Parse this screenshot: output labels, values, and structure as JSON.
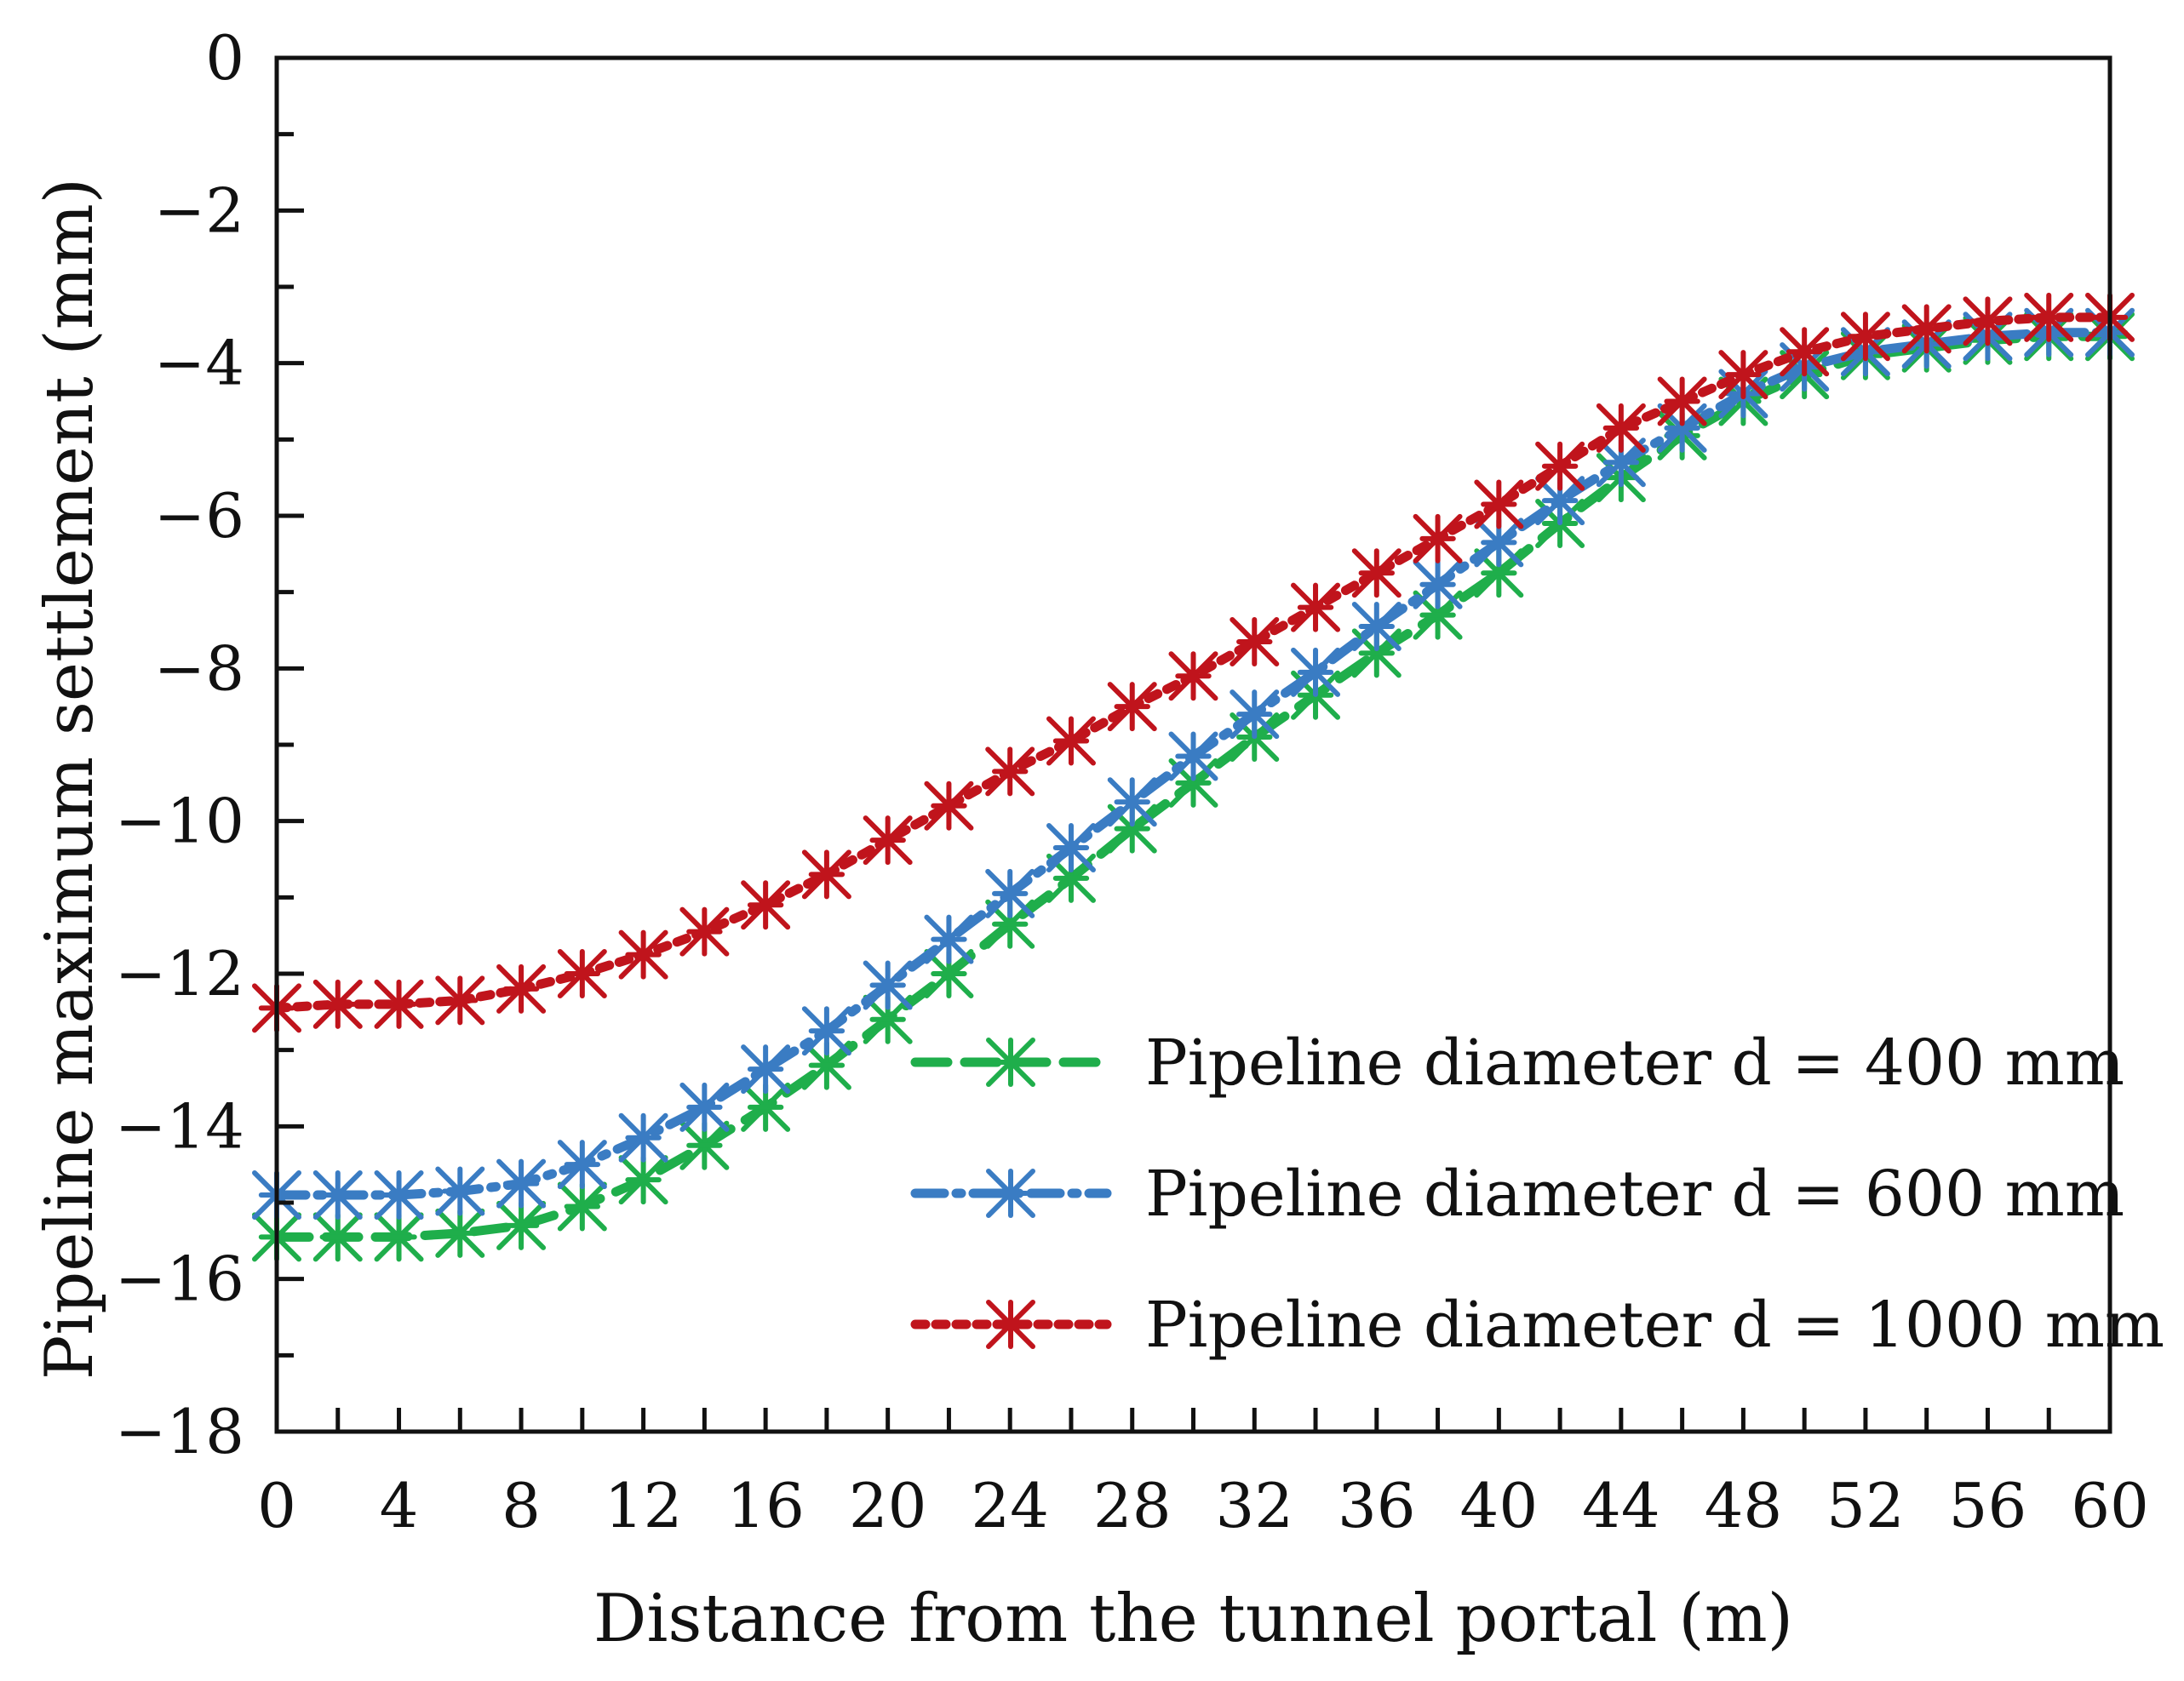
{
  "chart_data": {
    "type": "line",
    "title": "",
    "xlabel": "Distance from the tunnel portal (m)",
    "ylabel": "Pipeline maximum settlement (mm)",
    "xlim": [
      0,
      60
    ],
    "ylim": [
      -18,
      0
    ],
    "xticks": [
      0,
      4,
      8,
      12,
      16,
      20,
      24,
      28,
      32,
      36,
      40,
      44,
      48,
      52,
      56,
      60
    ],
    "yticks": [
      0,
      -2,
      -4,
      -6,
      -8,
      -10,
      -12,
      -14,
      -16,
      -18
    ],
    "xtick_labels": [
      "0",
      "4",
      "8",
      "12",
      "16",
      "20",
      "24",
      "28",
      "32",
      "36",
      "40",
      "44",
      "48",
      "52",
      "56",
      "60"
    ],
    "ytick_labels": [
      "0",
      "−2",
      "−4",
      "−6",
      "−8",
      "−10",
      "−12",
      "−14",
      "−16",
      "−18"
    ],
    "grid": false,
    "legend_position": "lower-right",
    "x": [
      0,
      2,
      4,
      6,
      8,
      10,
      12,
      14,
      16,
      18,
      20,
      22,
      24,
      26,
      28,
      30,
      32,
      34,
      36,
      38,
      40,
      42,
      44,
      46,
      48,
      50,
      52,
      54,
      56,
      58,
      60
    ],
    "series": [
      {
        "name": "Pipeline diameter d = 400 mm",
        "color": "#1fae4b",
        "dash": "dashed",
        "marker": "asterisk",
        "values": [
          -15.45,
          -15.45,
          -15.45,
          -15.4,
          -15.3,
          -15.05,
          -14.7,
          -14.25,
          -13.75,
          -13.2,
          -12.6,
          -12.0,
          -11.35,
          -10.75,
          -10.1,
          -9.5,
          -8.9,
          -8.35,
          -7.8,
          -7.3,
          -6.75,
          -6.1,
          -5.5,
          -4.95,
          -4.5,
          -4.15,
          -3.9,
          -3.8,
          -3.7,
          -3.65,
          -3.65
        ]
      },
      {
        "name": "Pipeline diameter d = 600 mm",
        "color": "#3a7cc3",
        "dash": "dashdot",
        "marker": "asterisk",
        "values": [
          -14.9,
          -14.9,
          -14.9,
          -14.85,
          -14.75,
          -14.5,
          -14.15,
          -13.75,
          -13.25,
          -12.75,
          -12.15,
          -11.55,
          -10.95,
          -10.35,
          -9.75,
          -9.15,
          -8.6,
          -8.05,
          -7.45,
          -6.9,
          -6.35,
          -5.8,
          -5.3,
          -4.85,
          -4.4,
          -4.05,
          -3.85,
          -3.75,
          -3.65,
          -3.6,
          -3.6
        ]
      },
      {
        "name": "Pipeline diameter d = 1000 mm",
        "color": "#c0141c",
        "dash": "dotted",
        "marker": "asterisk",
        "values": [
          -12.45,
          -12.4,
          -12.4,
          -12.35,
          -12.2,
          -12.0,
          -11.75,
          -11.45,
          -11.1,
          -10.7,
          -10.25,
          -9.8,
          -9.35,
          -8.95,
          -8.5,
          -8.1,
          -7.65,
          -7.2,
          -6.75,
          -6.3,
          -5.85,
          -5.35,
          -4.85,
          -4.5,
          -4.15,
          -3.85,
          -3.65,
          -3.55,
          -3.45,
          -3.4,
          -3.4
        ]
      }
    ]
  }
}
